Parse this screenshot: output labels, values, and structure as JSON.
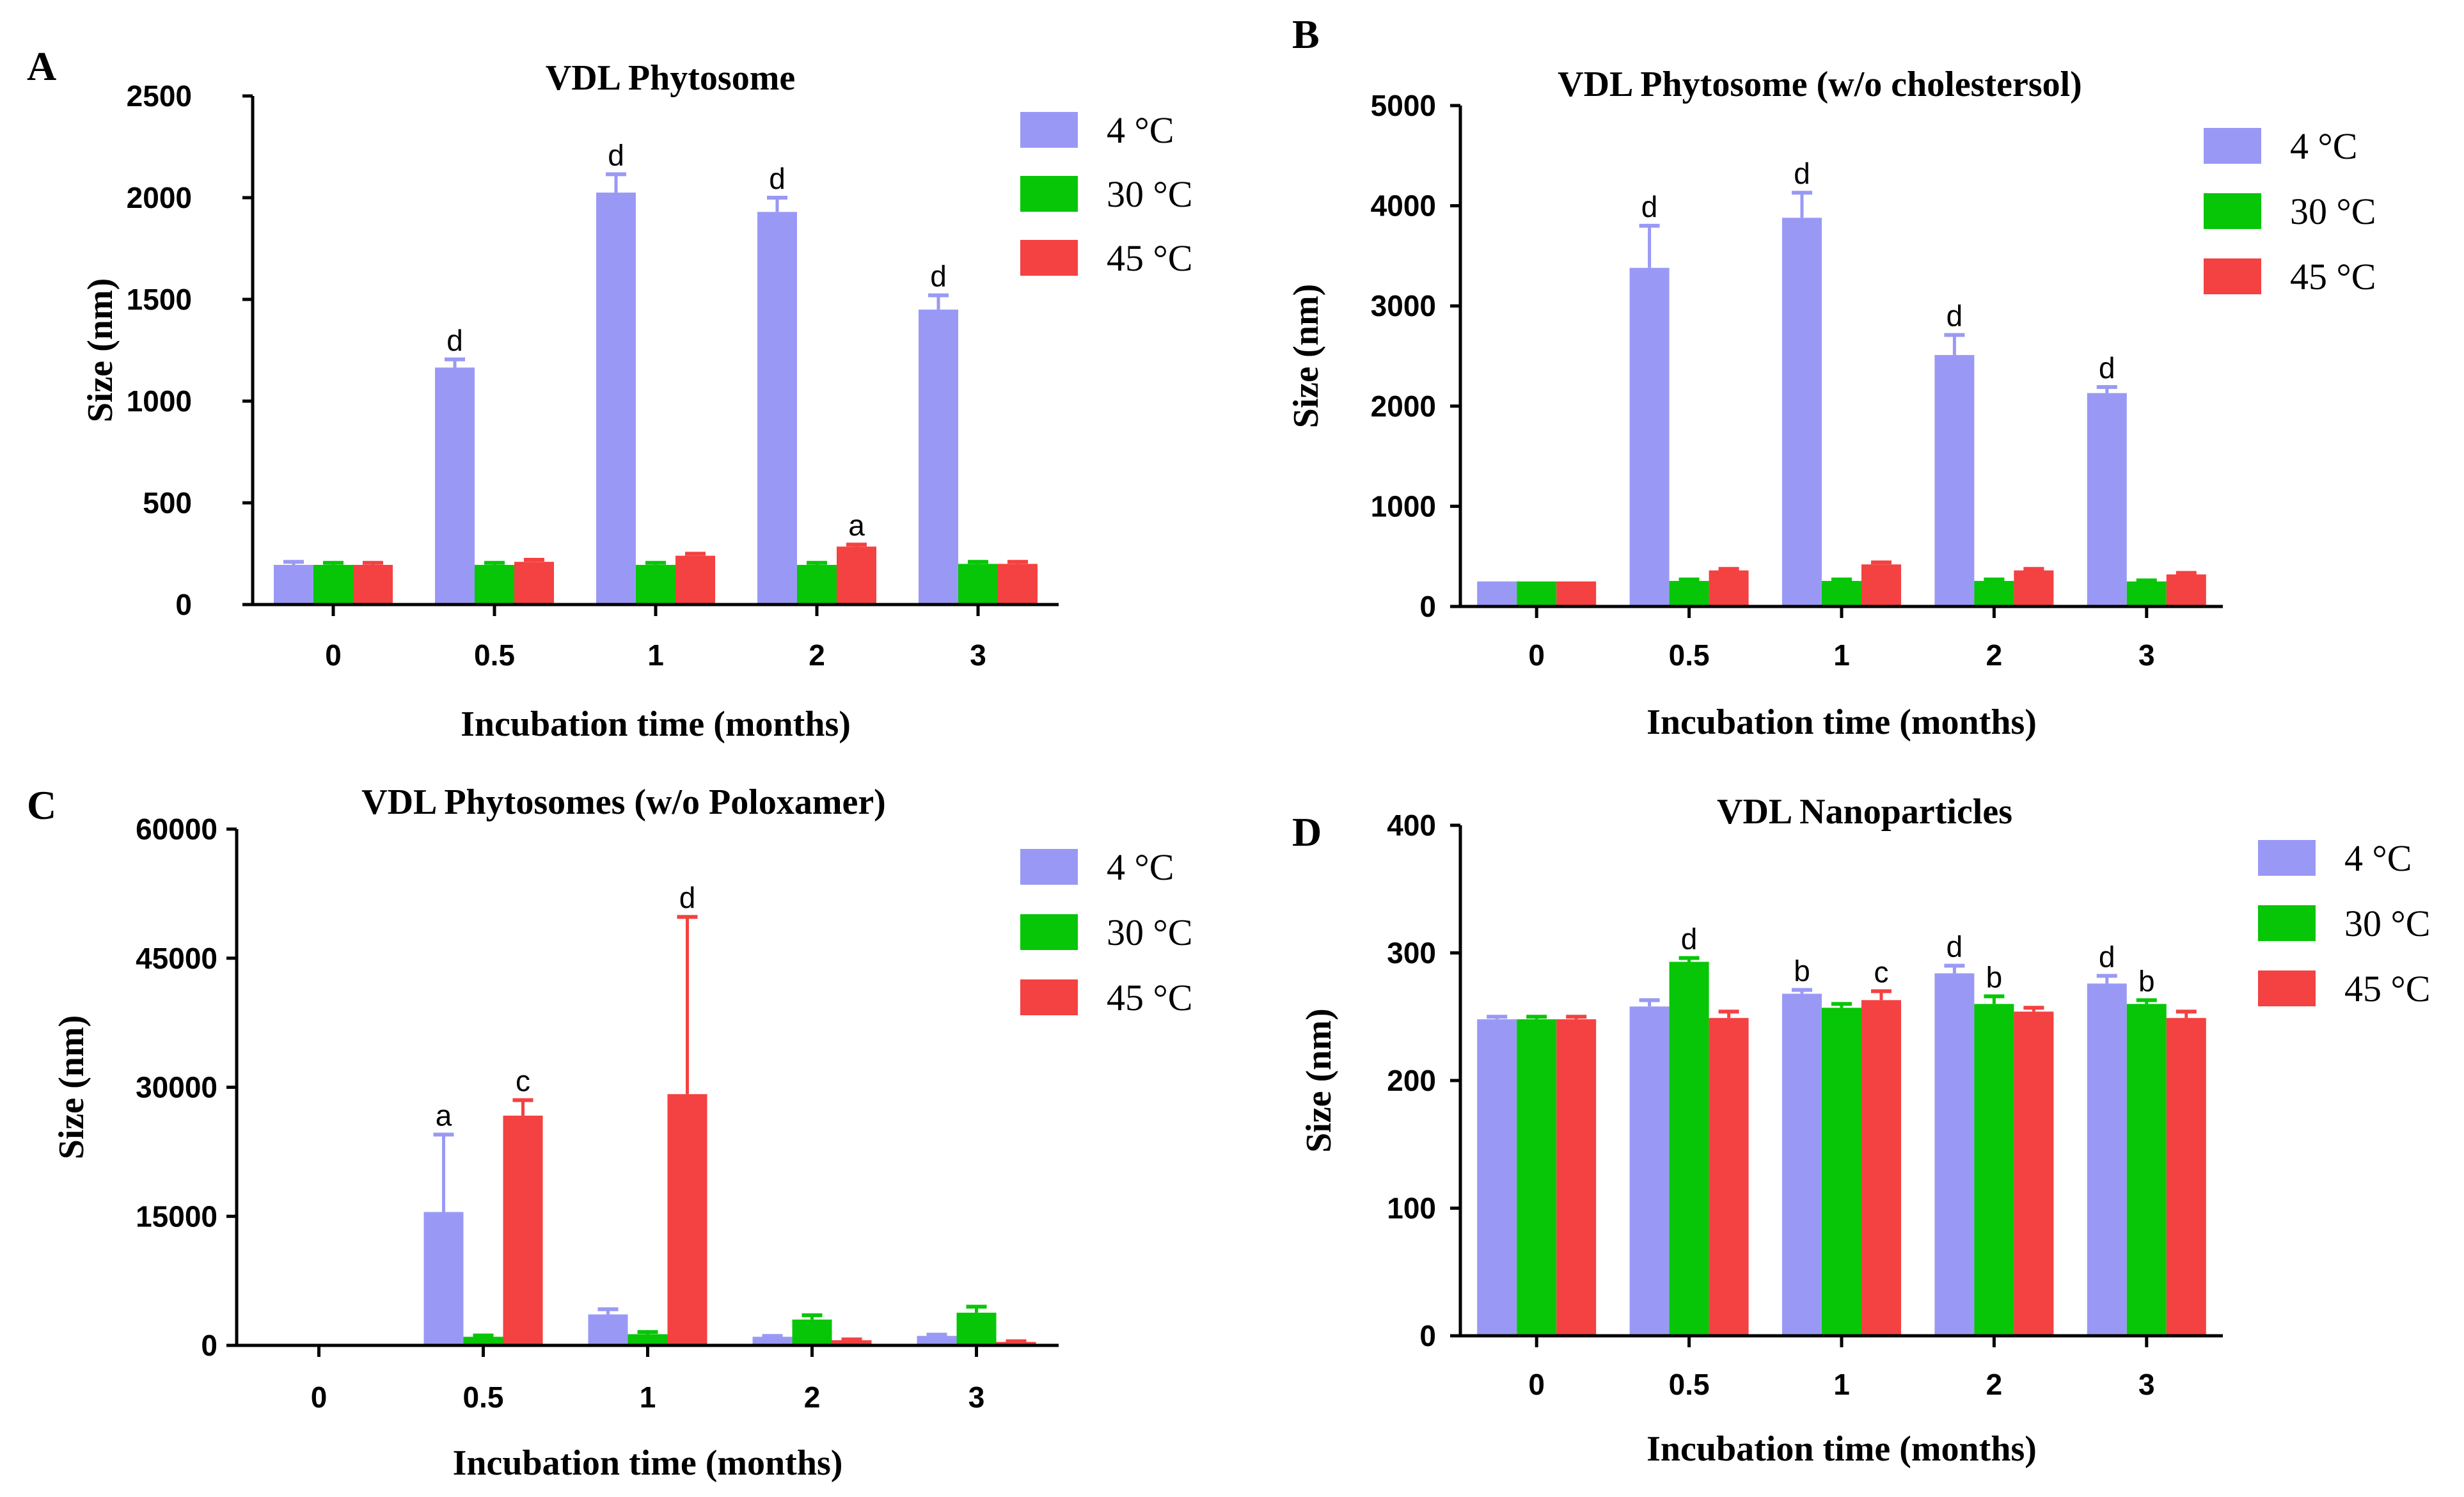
{
  "colors": {
    "4C": "#9999f5",
    "30C": "#07c607",
    "45C": "#f44141",
    "axis": "#000000"
  },
  "chart_data": [
    {
      "panel": "A",
      "type": "bar",
      "title": "VDL Phytosome",
      "xlabel": "Incubation time (months)",
      "ylabel": "Size (nm)",
      "categories": [
        "0",
        "0.5",
        "1",
        "2",
        "3"
      ],
      "ylim": [
        0,
        2500
      ],
      "yticks": [
        "0",
        "500",
        "1000",
        "1500",
        "2000",
        "2500"
      ],
      "yticks_values": [
        0,
        500,
        1000,
        1500,
        2000,
        2500
      ],
      "legend_position": "top-right",
      "series": [
        {
          "name": "4 °C",
          "values": [
            195,
            1165,
            2025,
            1930,
            1450
          ],
          "errors": [
            15,
            40,
            90,
            70,
            70
          ],
          "annotations": [
            "",
            "d",
            "d",
            "d",
            "d"
          ]
        },
        {
          "name": "30 °C",
          "values": [
            195,
            195,
            195,
            195,
            200
          ],
          "errors": [
            10,
            10,
            10,
            10,
            10
          ],
          "annotations": [
            "",
            "",
            "",
            "",
            ""
          ]
        },
        {
          "name": "45 °C",
          "values": [
            195,
            210,
            240,
            285,
            200
          ],
          "errors": [
            10,
            10,
            10,
            10,
            10
          ],
          "annotations": [
            "",
            "",
            "",
            "a",
            ""
          ]
        }
      ]
    },
    {
      "panel": "B",
      "type": "bar",
      "title": "VDL Phytosome (w/o cholestersol)",
      "xlabel": "Incubation time (months)",
      "ylabel": "Size (nm)",
      "categories": [
        "0",
        "0.5",
        "1",
        "2",
        "3"
      ],
      "ylim": [
        0,
        5000
      ],
      "yticks": [
        "0",
        "1000",
        "2000",
        "3000",
        "4000",
        "5000"
      ],
      "yticks_values": [
        0,
        1000,
        2000,
        3000,
        4000,
        5000
      ],
      "legend_position": "top-right",
      "series": [
        {
          "name": "4 °C",
          "values": [
            250,
            3380,
            3880,
            2510,
            2130
          ],
          "errors": [
            0,
            420,
            250,
            200,
            60
          ],
          "annotations": [
            "",
            "d",
            "d",
            "d",
            "d"
          ]
        },
        {
          "name": "30 °C",
          "values": [
            250,
            255,
            255,
            255,
            250
          ],
          "errors": [
            0,
            15,
            15,
            15,
            10
          ],
          "annotations": [
            "",
            "",
            "",
            "",
            ""
          ]
        },
        {
          "name": "45 °C",
          "values": [
            250,
            360,
            420,
            360,
            320
          ],
          "errors": [
            0,
            15,
            20,
            15,
            15
          ],
          "annotations": [
            "",
            "",
            "",
            "",
            ""
          ]
        }
      ]
    },
    {
      "panel": "C",
      "type": "bar",
      "title": "VDL Phytosomes (w/o Poloxamer)",
      "xlabel": "Incubation time (months)",
      "ylabel": "Size (nm)",
      "categories": [
        "0",
        "0.5",
        "1",
        "2",
        "3"
      ],
      "ylim": [
        0,
        60000
      ],
      "yticks": [
        "0",
        "15000",
        "30000",
        "45000",
        "60000"
      ],
      "yticks_values": [
        0,
        15000,
        30000,
        45000,
        60000
      ],
      "legend_position": "top-right",
      "series": [
        {
          "name": "4 °C",
          "values": [
            0,
            15500,
            3600,
            1000,
            1100
          ],
          "errors": [
            0,
            9000,
            600,
            100,
            150
          ],
          "annotations": [
            "",
            "a",
            "",
            "",
            ""
          ]
        },
        {
          "name": "30 °C",
          "values": [
            0,
            1000,
            1300,
            3000,
            3800
          ],
          "errors": [
            0,
            150,
            250,
            500,
            700
          ],
          "annotations": [
            "",
            "",
            "",
            "",
            ""
          ]
        },
        {
          "name": "45 °C",
          "values": [
            0,
            26700,
            29200,
            600,
            400
          ],
          "errors": [
            0,
            1800,
            20600,
            100,
            80
          ],
          "annotations": [
            "",
            "c",
            "d",
            "",
            ""
          ]
        }
      ]
    },
    {
      "panel": "D",
      "type": "bar",
      "title": "VDL Nanoparticles",
      "xlabel": "Incubation time (months)",
      "ylabel": "Size (nm)",
      "categories": [
        "0",
        "0.5",
        "1",
        "2",
        "3"
      ],
      "ylim": [
        0,
        400
      ],
      "yticks": [
        "0",
        "100",
        "200",
        "300",
        "400"
      ],
      "yticks_values": [
        0,
        100,
        200,
        300,
        400
      ],
      "legend_position": "top-right",
      "series": [
        {
          "name": "4 °C",
          "values": [
            248,
            258,
            268,
            284,
            276
          ],
          "errors": [
            2,
            5,
            3,
            6,
            6
          ],
          "annotations": [
            "",
            "",
            "b",
            "d",
            "d"
          ]
        },
        {
          "name": "30 °C",
          "values": [
            248,
            293,
            257,
            260,
            260
          ],
          "errors": [
            2,
            3,
            3,
            6,
            3
          ],
          "annotations": [
            "",
            "d",
            "",
            "b",
            "b"
          ]
        },
        {
          "name": "45 °C",
          "values": [
            248,
            249,
            263,
            254,
            249
          ],
          "errors": [
            2,
            5,
            7,
            3,
            5
          ],
          "annotations": [
            "",
            "",
            "c",
            "",
            ""
          ]
        }
      ]
    }
  ]
}
